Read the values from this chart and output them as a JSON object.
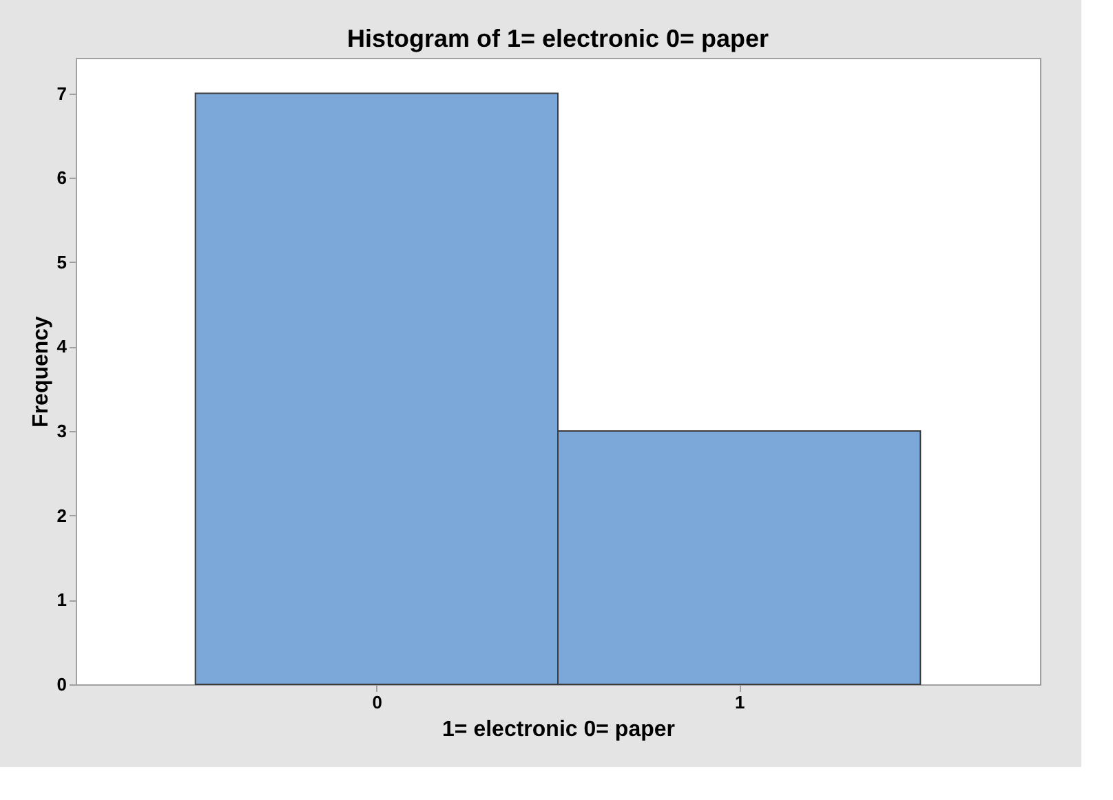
{
  "chart_data": {
    "type": "histogram",
    "title": "Histogram of 1= electronic 0= paper",
    "xlabel": "1= electronic 0= paper",
    "ylabel": "Frequency",
    "bins": [
      -0.5,
      0.5,
      1.5
    ],
    "values": [
      7,
      3
    ],
    "color": "#7ba7d9",
    "xlim": [
      -0.83,
      1.83
    ],
    "xticks": [
      0,
      1
    ],
    "ylim": [
      0,
      7.42
    ],
    "yticks": [
      0,
      1,
      2,
      3,
      4,
      5,
      6,
      7
    ],
    "grid": false
  }
}
